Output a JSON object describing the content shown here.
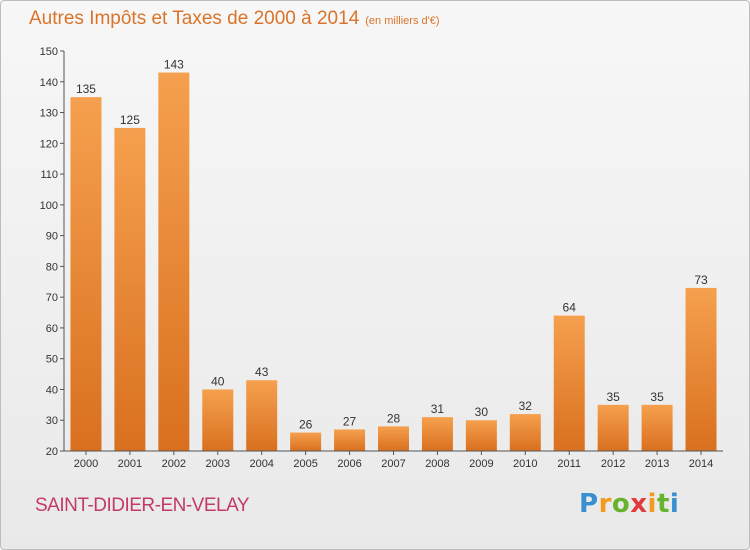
{
  "chart_data": {
    "type": "bar",
    "title": "Autres Impôts et Taxes de 2000 à 2014",
    "subtitle": "(en milliers d'€)",
    "xlabel": "",
    "ylabel": "",
    "categories": [
      "2000",
      "2001",
      "2002",
      "2003",
      "2004",
      "2005",
      "2006",
      "2007",
      "2008",
      "2009",
      "2010",
      "2011",
      "2012",
      "2013",
      "2014"
    ],
    "values": [
      135,
      125,
      143,
      40,
      43,
      26,
      27,
      28,
      31,
      30,
      32,
      64,
      35,
      35,
      73
    ],
    "ylim": [
      20,
      150
    ],
    "yticks": [
      20,
      30,
      40,
      50,
      60,
      70,
      80,
      90,
      100,
      110,
      120,
      130,
      140,
      150
    ],
    "grid": false,
    "bar_color_top": "#f5a04e",
    "bar_color_bottom": "#d9701f"
  },
  "footer": {
    "commune": "SAINT-DIDIER-EN-VELAY",
    "logo": {
      "letters": [
        "P",
        "r",
        "o",
        "x",
        "i",
        "t",
        "i"
      ],
      "colors": [
        "#3a8fd0",
        "#f29b1e",
        "#66b32e",
        "#e23b3b",
        "#f29b1e",
        "#66b32e",
        "#3a8fd0"
      ]
    }
  },
  "colors": {
    "title": "#d9742a",
    "commune": "#c23a68"
  }
}
